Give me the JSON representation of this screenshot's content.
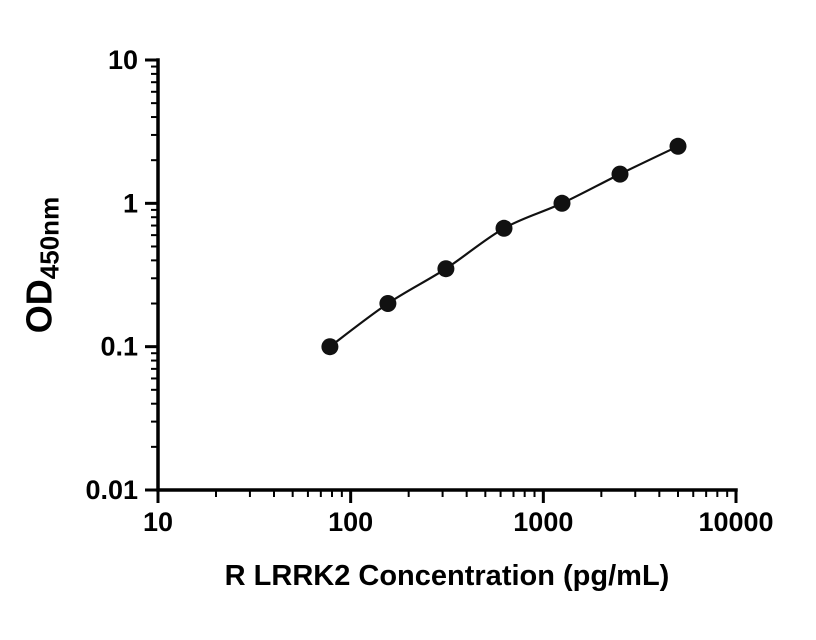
{
  "chart_data": {
    "type": "scatter",
    "title": "",
    "xlabel": "R LRRK2 Concentration (pg/mL)",
    "ylabel_main": "OD",
    "ylabel_sub": "450nm",
    "x": [
      78,
      156,
      312,
      625,
      1250,
      2500,
      5000
    ],
    "y": [
      0.1,
      0.2,
      0.35,
      0.67,
      1.0,
      1.6,
      2.5
    ],
    "xscale": "log",
    "yscale": "log",
    "xlim": [
      10,
      10000
    ],
    "ylim": [
      0.01,
      10
    ],
    "x_ticks": [
      10,
      100,
      1000,
      10000
    ],
    "x_tick_labels": [
      "10",
      "100",
      "1000",
      "10000"
    ],
    "y_ticks": [
      0.01,
      0.1,
      1,
      10
    ],
    "y_tick_labels": [
      "0.01",
      "0.1",
      "1",
      "10"
    ],
    "grid": false,
    "legend": "none",
    "axis_color": "#000000",
    "marker_color": "#111111",
    "line_color": "#111111"
  }
}
